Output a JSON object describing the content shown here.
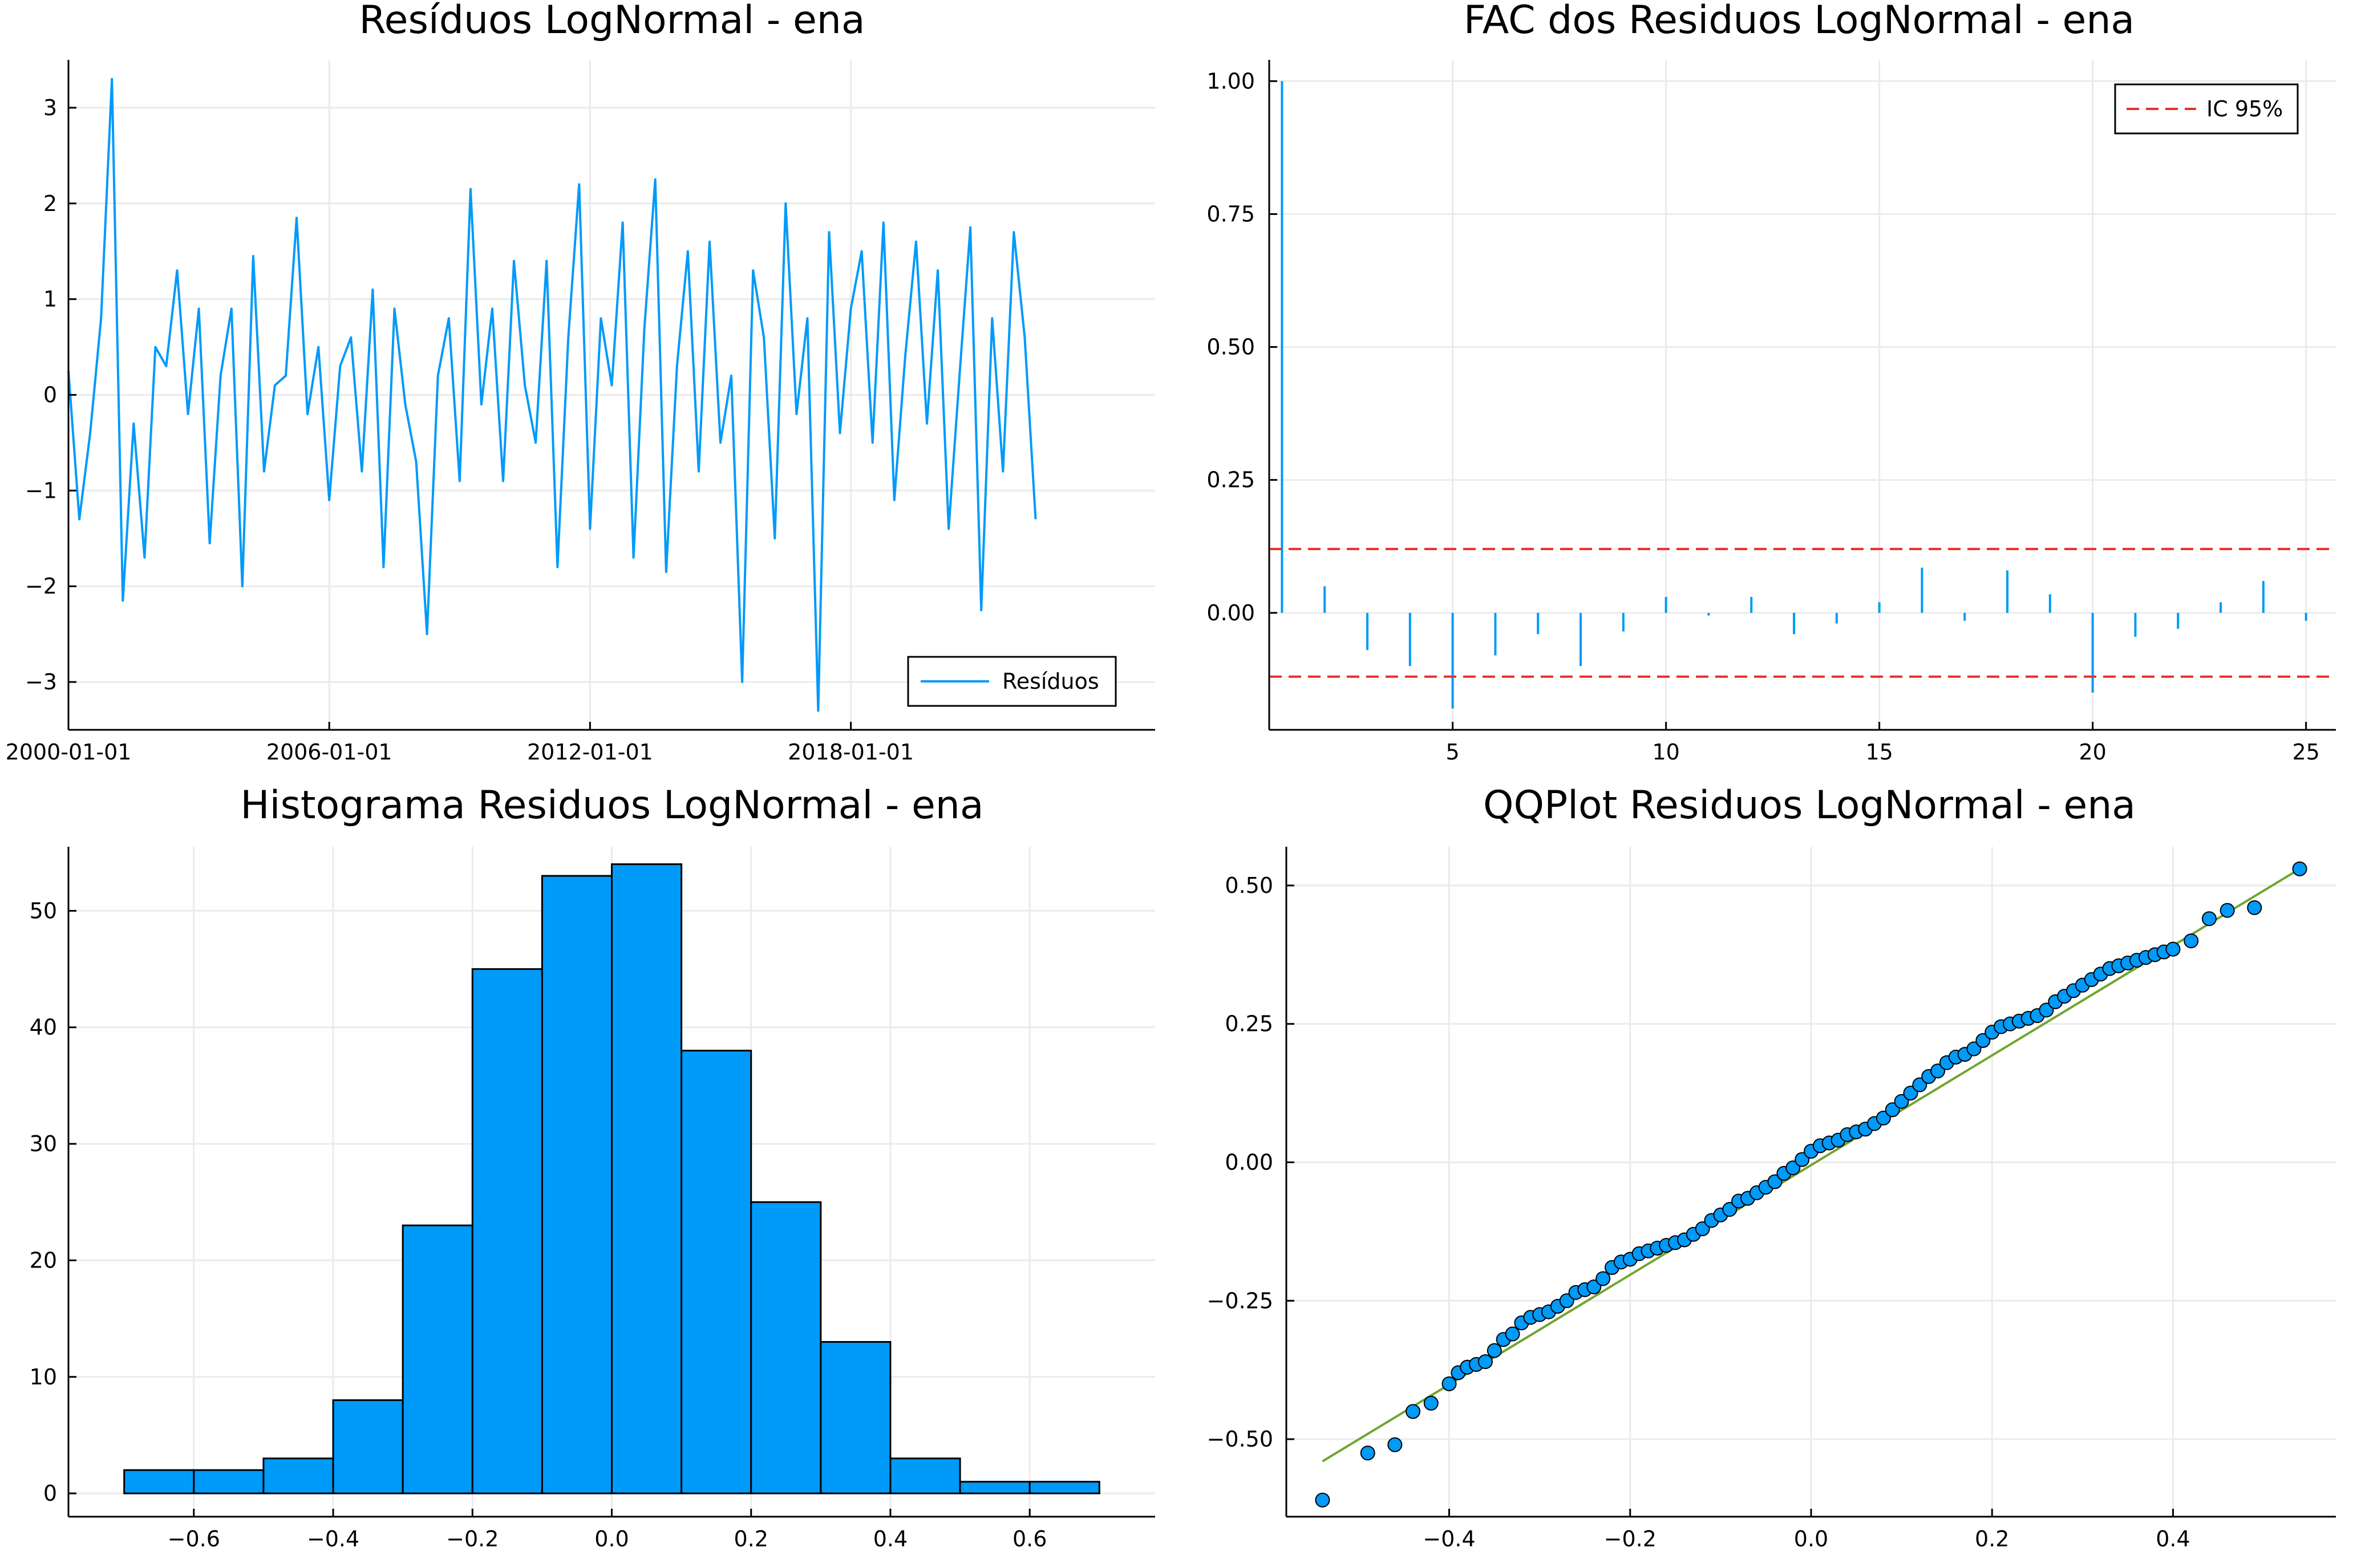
{
  "colors": {
    "series": "#009af9",
    "ci": "#e83030",
    "qq_line": "#6fa52e",
    "grid": "#ebebeb",
    "axis": "#000000"
  },
  "chart_data": [
    {
      "id": "residuals",
      "type": "line",
      "title": "Resíduos LogNormal - ena",
      "xlabel": "",
      "ylabel": "",
      "xlim": [
        2000,
        2025
      ],
      "ylim": [
        -3.5,
        3.5
      ],
      "xticks": [
        {
          "v": 2000,
          "label": "2000-01-01"
        },
        {
          "v": 2006,
          "label": "2006-01-01"
        },
        {
          "v": 2012,
          "label": "2012-01-01"
        },
        {
          "v": 2018,
          "label": "2018-01-01"
        }
      ],
      "yticks": [
        {
          "v": 3,
          "label": "3"
        },
        {
          "v": 2,
          "label": "2"
        },
        {
          "v": 1,
          "label": "1"
        },
        {
          "v": 0,
          "label": "0"
        },
        {
          "v": -1,
          "label": "−1"
        },
        {
          "v": -2,
          "label": "−2"
        },
        {
          "v": -3,
          "label": "−3"
        }
      ],
      "legend": {
        "placement": "bottom-right",
        "entries": [
          "Resíduos"
        ]
      },
      "grid": true,
      "series": [
        {
          "name": "Resíduos",
          "x": [
            2000.0,
            2000.25,
            2000.5,
            2000.75,
            2001.0,
            2001.25,
            2001.5,
            2001.75,
            2002.0,
            2002.25,
            2002.5,
            2002.75,
            2003.0,
            2003.25,
            2003.5,
            2003.75,
            2004.0,
            2004.25,
            2004.5,
            2004.75,
            2005.0,
            2005.25,
            2005.5,
            2005.75,
            2006.0,
            2006.25,
            2006.5,
            2006.75,
            2007.0,
            2007.25,
            2007.5,
            2007.75,
            2008.0,
            2008.25,
            2008.5,
            2008.75,
            2009.0,
            2009.25,
            2009.5,
            2009.75,
            2010.0,
            2010.25,
            2010.5,
            2010.75,
            2011.0,
            2011.25,
            2011.5,
            2011.75,
            2012.0,
            2012.25,
            2012.5,
            2012.75,
            2013.0,
            2013.25,
            2013.5,
            2013.75,
            2014.0,
            2014.25,
            2014.5,
            2014.75,
            2015.0,
            2015.25,
            2015.5,
            2015.75,
            2016.0,
            2016.25,
            2016.5,
            2016.75,
            2017.0,
            2017.25,
            2017.5,
            2017.75,
            2018.0,
            2018.25,
            2018.5,
            2018.75,
            2019.0,
            2019.25,
            2019.5,
            2019.75,
            2020.0,
            2020.25,
            2020.5,
            2020.75,
            2021.0,
            2021.25,
            2021.5,
            2021.75,
            2022.0,
            2022.25
          ],
          "y": [
            0.25,
            -1.3,
            -0.4,
            0.8,
            3.3,
            -2.15,
            -0.3,
            -1.7,
            0.5,
            0.3,
            1.3,
            -0.2,
            0.9,
            -1.55,
            0.2,
            0.9,
            -2.0,
            1.45,
            -0.8,
            0.1,
            0.2,
            1.85,
            -0.2,
            0.5,
            -1.1,
            0.3,
            0.6,
            -0.8,
            1.1,
            -1.8,
            0.9,
            -0.1,
            -0.7,
            -2.5,
            0.2,
            0.8,
            -0.9,
            2.15,
            -0.1,
            0.9,
            -0.9,
            1.4,
            0.1,
            -0.5,
            1.4,
            -1.8,
            0.6,
            2.2,
            -1.4,
            0.8,
            0.1,
            1.8,
            -1.7,
            0.7,
            2.25,
            -1.85,
            0.3,
            1.5,
            -0.8,
            1.6,
            -0.5,
            0.2,
            -3.0,
            1.3,
            0.6,
            -1.5,
            2.0,
            -0.2,
            0.8,
            -3.3,
            1.7,
            -0.4,
            0.9,
            1.5,
            -0.5,
            1.8,
            -1.1,
            0.4,
            1.6,
            -0.3,
            1.3,
            -1.4,
            0.2,
            1.75,
            -2.25,
            0.8,
            -0.8,
            1.7,
            0.6,
            -1.3
          ]
        }
      ]
    },
    {
      "id": "acf",
      "type": "bar",
      "title": "FAC dos Residuos LogNormal - ena",
      "xlabel": "",
      "ylabel": "",
      "xlim": [
        0.7,
        25.7
      ],
      "ylim": [
        -0.22,
        1.04
      ],
      "xticks": [
        {
          "v": 5,
          "label": "5"
        },
        {
          "v": 10,
          "label": "10"
        },
        {
          "v": 15,
          "label": "15"
        },
        {
          "v": 20,
          "label": "20"
        },
        {
          "v": 25,
          "label": "25"
        }
      ],
      "yticks": [
        {
          "v": 1.0,
          "label": "1.00"
        },
        {
          "v": 0.75,
          "label": "0.75"
        },
        {
          "v": 0.5,
          "label": "0.50"
        },
        {
          "v": 0.25,
          "label": "0.25"
        },
        {
          "v": 0.0,
          "label": "0.00"
        }
      ],
      "legend": {
        "placement": "top-right",
        "entries": [
          "IC 95%"
        ]
      },
      "grid": true,
      "lags": [
        1,
        2,
        3,
        4,
        5,
        6,
        7,
        8,
        9,
        10,
        11,
        12,
        13,
        14,
        15,
        16,
        17,
        18,
        19,
        20,
        21,
        22,
        23,
        24,
        25
      ],
      "values": [
        1.0,
        0.05,
        -0.07,
        -0.1,
        -0.18,
        -0.08,
        -0.04,
        -0.1,
        -0.035,
        0.03,
        -0.005,
        0.03,
        -0.04,
        -0.02,
        0.02,
        0.085,
        -0.015,
        0.08,
        0.035,
        -0.15,
        -0.045,
        -0.03,
        0.02,
        0.06,
        -0.015
      ],
      "ci": [
        0.12,
        -0.12
      ]
    },
    {
      "id": "histogram",
      "type": "bar",
      "title": "Histograma Residuos LogNormal - ena",
      "xlabel": "",
      "ylabel": "",
      "xlim": [
        -0.78,
        0.78
      ],
      "ylim": [
        -2,
        55.5
      ],
      "xticks": [
        {
          "v": -0.6,
          "label": "−0.6"
        },
        {
          "v": -0.4,
          "label": "−0.4"
        },
        {
          "v": -0.2,
          "label": "−0.2"
        },
        {
          "v": 0.0,
          "label": "0.0"
        },
        {
          "v": 0.2,
          "label": "0.2"
        },
        {
          "v": 0.4,
          "label": "0.4"
        },
        {
          "v": 0.6,
          "label": "0.6"
        }
      ],
      "yticks": [
        {
          "v": 50,
          "label": "50"
        },
        {
          "v": 40,
          "label": "40"
        },
        {
          "v": 30,
          "label": "30"
        },
        {
          "v": 20,
          "label": "20"
        },
        {
          "v": 10,
          "label": "10"
        },
        {
          "v": 0,
          "label": "0"
        }
      ],
      "grid": true,
      "bin_edges": [
        -0.7,
        -0.6,
        -0.5,
        -0.4,
        -0.3,
        -0.2,
        -0.1,
        0.0,
        0.1,
        0.2,
        0.3,
        0.4,
        0.5,
        0.6,
        0.7
      ],
      "values": [
        2,
        2,
        3,
        8,
        23,
        45,
        53,
        54,
        38,
        25,
        13,
        3,
        1,
        1
      ]
    },
    {
      "id": "qqplot",
      "type": "scatter",
      "title": "QQPlot Residuos LogNormal - ena",
      "xlabel": "",
      "ylabel": "",
      "xlim": [
        -0.58,
        0.58
      ],
      "ylim": [
        -0.64,
        0.57
      ],
      "xticks": [
        {
          "v": -0.4,
          "label": "−0.4"
        },
        {
          "v": -0.2,
          "label": "−0.2"
        },
        {
          "v": 0.0,
          "label": "0.0"
        },
        {
          "v": 0.2,
          "label": "0.2"
        },
        {
          "v": 0.4,
          "label": "0.4"
        }
      ],
      "yticks": [
        {
          "v": 0.5,
          "label": "0.50"
        },
        {
          "v": 0.25,
          "label": "0.25"
        },
        {
          "v": 0.0,
          "label": "0.00"
        },
        {
          "v": -0.25,
          "label": "−0.25"
        },
        {
          "v": -0.5,
          "label": "−0.50"
        }
      ],
      "grid": true,
      "reference_line": {
        "x": [
          -0.54,
          0.54
        ],
        "y": [
          -0.54,
          0.53
        ]
      },
      "points": {
        "x": [
          -0.54,
          -0.49,
          -0.46,
          -0.44,
          -0.42,
          -0.4,
          -0.39,
          -0.38,
          -0.37,
          -0.36,
          -0.35,
          -0.34,
          -0.33,
          -0.32,
          -0.31,
          -0.3,
          -0.29,
          -0.28,
          -0.27,
          -0.26,
          -0.25,
          -0.24,
          -0.23,
          -0.22,
          -0.21,
          -0.2,
          -0.19,
          -0.18,
          -0.17,
          -0.16,
          -0.15,
          -0.14,
          -0.13,
          -0.12,
          -0.11,
          -0.1,
          -0.09,
          -0.08,
          -0.07,
          -0.06,
          -0.05,
          -0.04,
          -0.03,
          -0.02,
          -0.01,
          0.0,
          0.01,
          0.02,
          0.03,
          0.04,
          0.05,
          0.06,
          0.07,
          0.08,
          0.09,
          0.1,
          0.11,
          0.12,
          0.13,
          0.14,
          0.15,
          0.16,
          0.17,
          0.18,
          0.19,
          0.2,
          0.21,
          0.22,
          0.23,
          0.24,
          0.25,
          0.26,
          0.27,
          0.28,
          0.29,
          0.3,
          0.31,
          0.32,
          0.33,
          0.34,
          0.35,
          0.36,
          0.37,
          0.38,
          0.39,
          0.4,
          0.42,
          0.44,
          0.46,
          0.49,
          0.54
        ],
        "y": [
          -0.61,
          -0.525,
          -0.51,
          -0.45,
          -0.435,
          -0.4,
          -0.38,
          -0.37,
          -0.365,
          -0.36,
          -0.34,
          -0.32,
          -0.31,
          -0.29,
          -0.28,
          -0.275,
          -0.27,
          -0.26,
          -0.25,
          -0.235,
          -0.23,
          -0.225,
          -0.21,
          -0.19,
          -0.18,
          -0.175,
          -0.165,
          -0.16,
          -0.155,
          -0.15,
          -0.145,
          -0.14,
          -0.13,
          -0.12,
          -0.105,
          -0.095,
          -0.085,
          -0.07,
          -0.065,
          -0.055,
          -0.045,
          -0.035,
          -0.02,
          -0.01,
          0.005,
          0.02,
          0.03,
          0.035,
          0.04,
          0.05,
          0.055,
          0.06,
          0.07,
          0.08,
          0.095,
          0.11,
          0.125,
          0.14,
          0.155,
          0.165,
          0.18,
          0.19,
          0.195,
          0.205,
          0.22,
          0.235,
          0.245,
          0.25,
          0.255,
          0.26,
          0.265,
          0.275,
          0.29,
          0.3,
          0.31,
          0.32,
          0.33,
          0.34,
          0.35,
          0.355,
          0.36,
          0.365,
          0.37,
          0.375,
          0.38,
          0.385,
          0.4,
          0.44,
          0.455,
          0.46,
          0.53
        ]
      }
    }
  ]
}
